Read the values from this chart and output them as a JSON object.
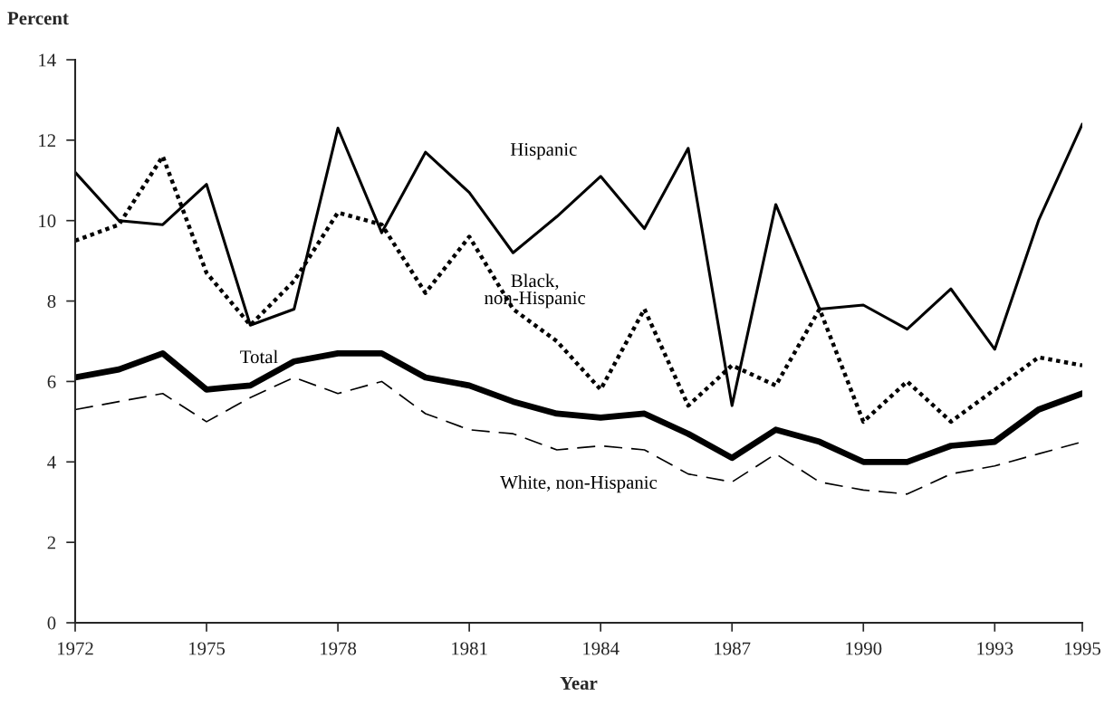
{
  "chart_data": {
    "type": "line",
    "xlabel": "Year",
    "ylabel": "Percent",
    "x": [
      1972,
      1973,
      1974,
      1975,
      1976,
      1977,
      1978,
      1979,
      1980,
      1981,
      1982,
      1983,
      1984,
      1985,
      1986,
      1987,
      1988,
      1989,
      1990,
      1991,
      1992,
      1993,
      1994,
      1995
    ],
    "series": [
      {
        "name": "Hispanic",
        "color": "#000000",
        "line_style": "solid",
        "values": [
          11.2,
          10.0,
          9.9,
          10.9,
          7.4,
          7.8,
          12.3,
          9.7,
          11.7,
          10.7,
          9.2,
          10.1,
          11.1,
          9.8,
          11.8,
          5.4,
          10.4,
          7.8,
          7.9,
          7.3,
          8.3,
          6.8,
          10.0,
          12.4
        ]
      },
      {
        "name": "Black,\nnon-Hispanic",
        "color": "#000000",
        "line_style": "dotted",
        "values": [
          9.5,
          9.9,
          11.6,
          8.7,
          7.4,
          8.5,
          10.2,
          9.9,
          8.2,
          9.6,
          7.8,
          7.0,
          5.8,
          7.8,
          5.4,
          6.4,
          5.9,
          7.8,
          5.0,
          6.0,
          5.0,
          5.8,
          6.6,
          6.4
        ]
      },
      {
        "name": "Total",
        "color": "#000000",
        "line_style": "solid",
        "values": [
          6.1,
          6.3,
          6.7,
          5.8,
          5.9,
          6.5,
          6.7,
          6.7,
          6.1,
          5.9,
          5.5,
          5.2,
          5.1,
          5.2,
          4.7,
          4.1,
          4.8,
          4.5,
          4.0,
          4.0,
          4.4,
          4.5,
          5.3,
          5.7
        ]
      },
      {
        "name": "White, non-Hispanic",
        "color": "#000000",
        "line_style": "dashed",
        "values": [
          5.3,
          5.5,
          5.7,
          5.0,
          5.6,
          6.1,
          5.7,
          6.0,
          5.2,
          4.8,
          4.7,
          4.3,
          4.4,
          4.3,
          3.7,
          3.5,
          4.2,
          3.5,
          3.3,
          3.2,
          3.7,
          3.9,
          4.2,
          4.5
        ]
      }
    ],
    "xlim": [
      1972,
      1995
    ],
    "ylim": [
      0,
      14
    ],
    "xticks": [
      1972,
      1975,
      1978,
      1981,
      1984,
      1987,
      1990,
      1993,
      1995
    ],
    "yticks": [
      0,
      2,
      4,
      6,
      8,
      10,
      12,
      14
    ],
    "grid": false,
    "legend": false,
    "marker": "none"
  }
}
